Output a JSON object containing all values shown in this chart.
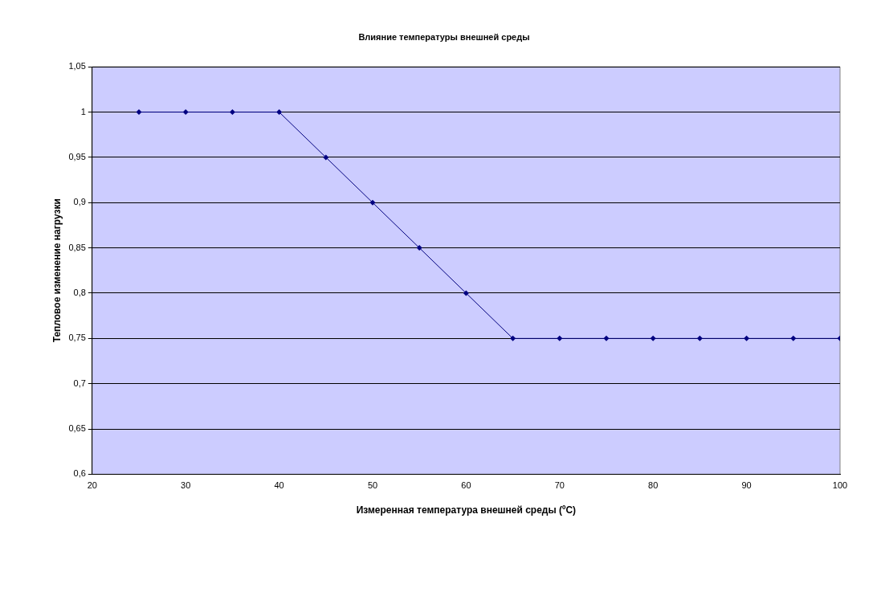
{
  "chart_data": {
    "type": "line",
    "title": "Влияние температуры внешней среды",
    "xlabel": "Измеренная температура внешней среды (ºC)",
    "ylabel": "Тепловое изменение нагрузки",
    "x": [
      25,
      30,
      35,
      40,
      45,
      50,
      55,
      60,
      65,
      70,
      75,
      80,
      85,
      90,
      95,
      100
    ],
    "series": [
      {
        "color": "#000080",
        "values": [
          1,
          1,
          1,
          1,
          0.95,
          0.9,
          0.85,
          0.8,
          0.75,
          0.75,
          0.75,
          0.75,
          0.75,
          0.75,
          0.75,
          0.75
        ]
      }
    ],
    "xlim": [
      20,
      100
    ],
    "xticks": [
      20,
      30,
      40,
      50,
      60,
      70,
      80,
      90,
      100
    ],
    "ylim": [
      0.6,
      1.05
    ],
    "yticks": [
      {
        "value": 0.6,
        "label": "0,6"
      },
      {
        "value": 0.65,
        "label": "0,65"
      },
      {
        "value": 0.7,
        "label": "0,7"
      },
      {
        "value": 0.75,
        "label": "0,75"
      },
      {
        "value": 0.8,
        "label": "0,8"
      },
      {
        "value": 0.85,
        "label": "0,85"
      },
      {
        "value": 0.9,
        "label": "0,9"
      },
      {
        "value": 0.95,
        "label": "0,95"
      },
      {
        "value": 1,
        "label": "1"
      },
      {
        "value": 1.05,
        "label": "1,05"
      }
    ],
    "grid": "y",
    "legend": false,
    "marker": "diamond",
    "line_style": "solid"
  }
}
